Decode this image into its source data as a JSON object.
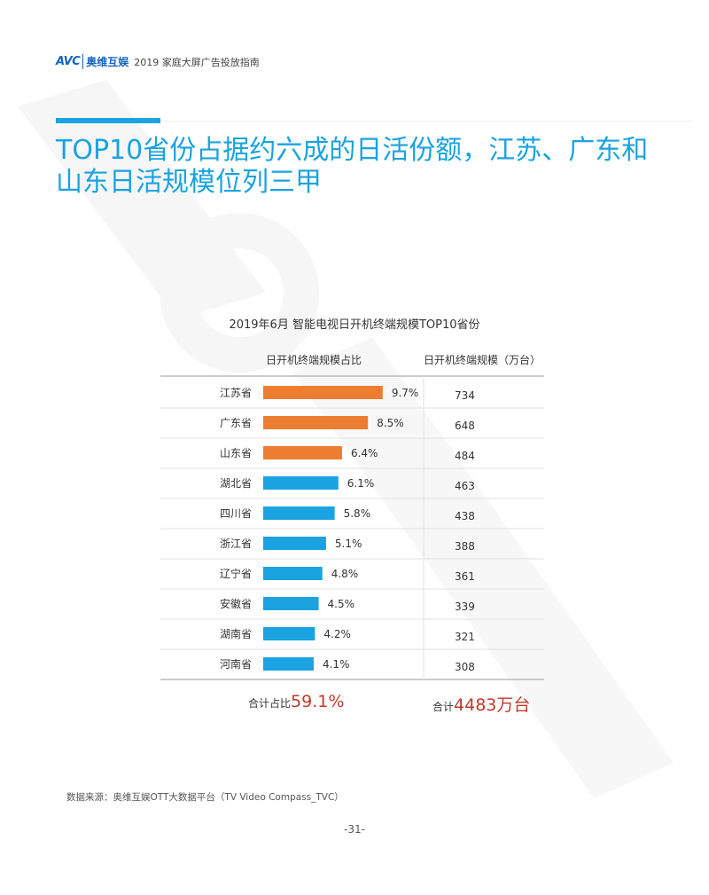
{
  "header": {
    "logo": "AVC",
    "logo_cn": "奥维互娱",
    "doc_title": "2019 家庭大屏广告投放指南"
  },
  "title": "TOP10省份占据约六成的日活份额，江苏、广东和山东日活规模位列三甲",
  "chart_data": {
    "type": "bar",
    "title": "2019年6月 智能电视日开机终端规模TOP10省份",
    "column_headers": [
      "日开机终端规模占比",
      "日开机终端规模（万台）"
    ],
    "categories": [
      "江苏省",
      "广东省",
      "山东省",
      "湖北省",
      "四川省",
      "浙江省",
      "辽宁省",
      "安徽省",
      "湖南省",
      "河南省"
    ],
    "series": [
      {
        "name": "日开机终端规模占比",
        "unit": "%",
        "values": [
          9.7,
          8.5,
          6.4,
          6.1,
          5.8,
          5.1,
          4.8,
          4.5,
          4.2,
          4.1
        ],
        "labels": [
          "9.7%",
          "8.5%",
          "6.4%",
          "6.1%",
          "5.8%",
          "5.1%",
          "4.8%",
          "4.5%",
          "4.2%",
          "4.1%"
        ]
      },
      {
        "name": "日开机终端规模（万台）",
        "values": [
          734,
          648,
          484,
          463,
          438,
          388,
          361,
          339,
          321,
          308
        ]
      }
    ],
    "colors": {
      "top3": "#ed7d31",
      "others": "#1aa3e0"
    }
  },
  "summary": {
    "share_label": "合计占比",
    "share_value": "59.1%",
    "total_label": "合计",
    "total_value": "4483万台"
  },
  "source": "数据来源：奥维互娱OTT大数据平台（TV Video Compass_TVC）",
  "page_number": "-31-"
}
